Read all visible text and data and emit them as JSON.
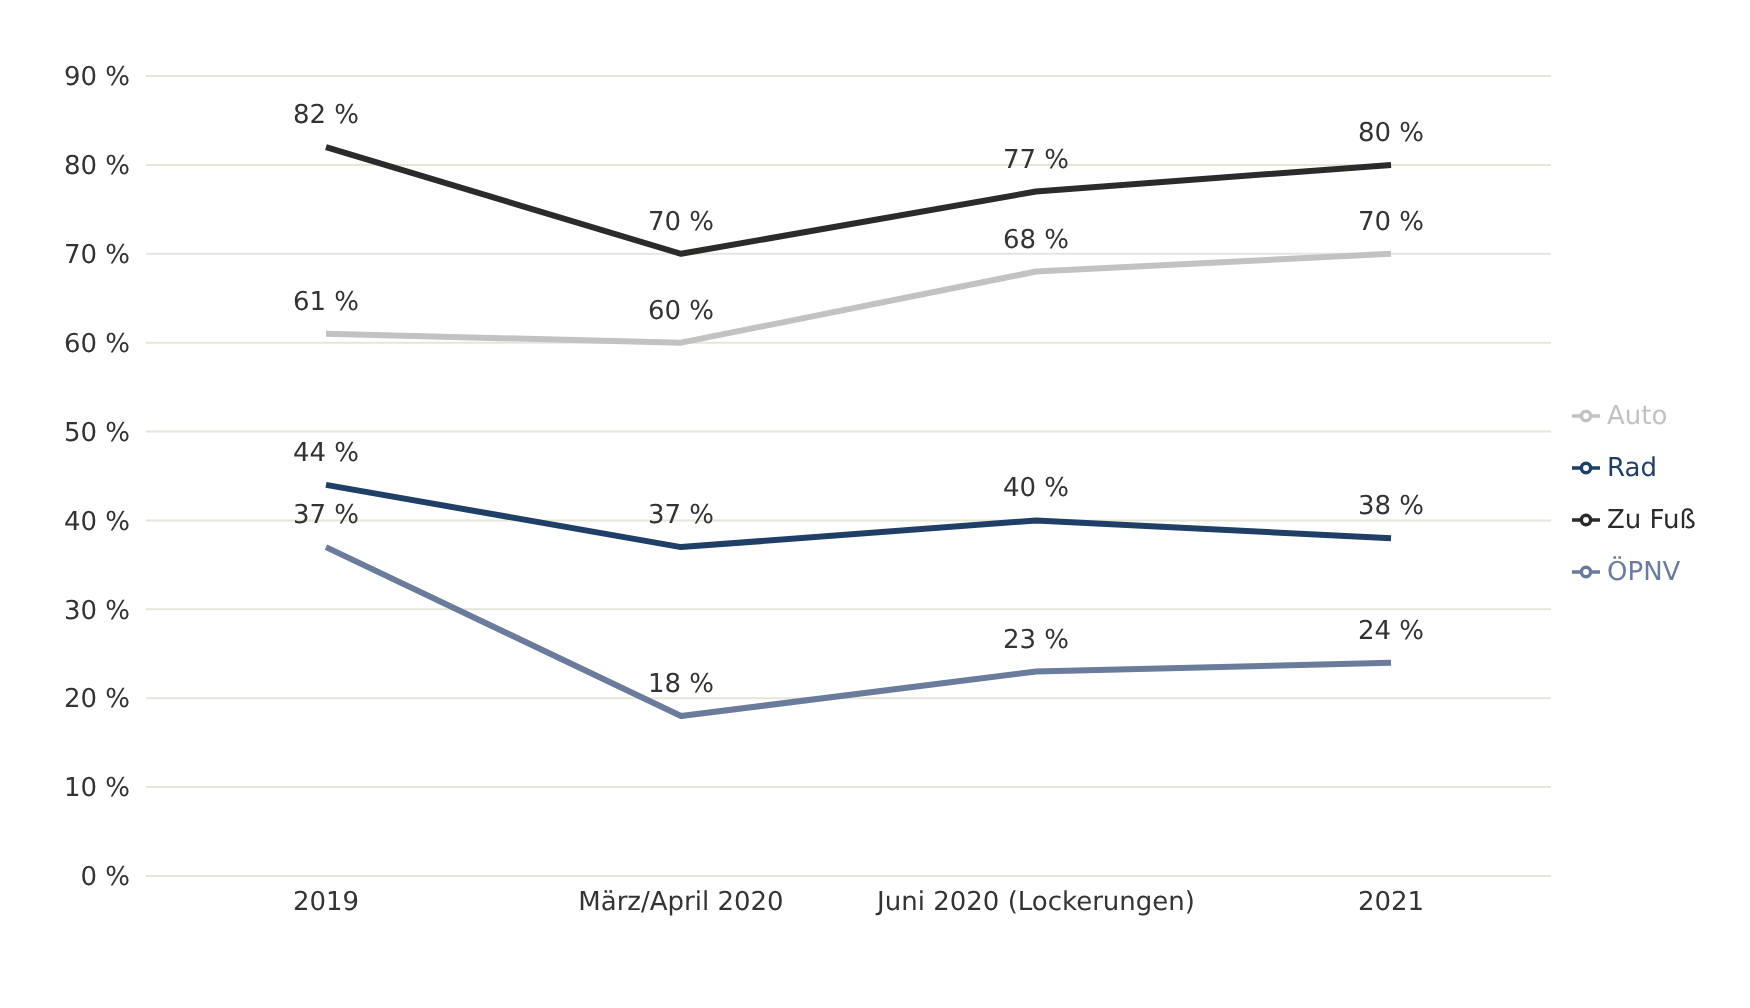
{
  "chart_data": {
    "type": "line",
    "categories": [
      "2019",
      "März/April 2020",
      "Juni 2020 (Lockerungen)",
      "2021"
    ],
    "series": [
      {
        "name": "Zu Fuß",
        "color": "#2b2b2b",
        "values": [
          82,
          70,
          77,
          80
        ],
        "value_labels": [
          "82 %",
          "70 %",
          "77 %",
          "80 %"
        ]
      },
      {
        "name": "Rad",
        "color": "#1f3f66",
        "values": [
          44,
          37,
          40,
          38
        ],
        "value_labels": [
          "44 %",
          "37 %",
          "40 %",
          "38 %"
        ]
      },
      {
        "name": "ÖPNV",
        "color": "#6b7b9b",
        "values": [
          37,
          18,
          23,
          24
        ],
        "value_labels": [
          "37 %",
          "18 %",
          "23 %",
          "24 %"
        ]
      },
      {
        "name": "Auto",
        "color": "#c2c2c2",
        "values": [
          61,
          60,
          68,
          70
        ],
        "value_labels": [
          "61 %",
          "60 %",
          "68 %",
          "70 %"
        ]
      }
    ],
    "ylim": [
      0,
      90
    ],
    "yticks": [
      {
        "value": 0,
        "label": "0 %"
      },
      {
        "value": 10,
        "label": "10 %"
      },
      {
        "value": 20,
        "label": "20 %"
      },
      {
        "value": 30,
        "label": "30 %"
      },
      {
        "value": 40,
        "label": "40 %"
      },
      {
        "value": 50,
        "label": "50 %"
      },
      {
        "value": 60,
        "label": "60 %"
      },
      {
        "value": 70,
        "label": "70 %"
      },
      {
        "value": 80,
        "label": "80 %"
      },
      {
        "value": 90,
        "label": "90 %"
      }
    ],
    "grid": "y",
    "legend": "right",
    "marker": "none",
    "line_style": "solid"
  }
}
